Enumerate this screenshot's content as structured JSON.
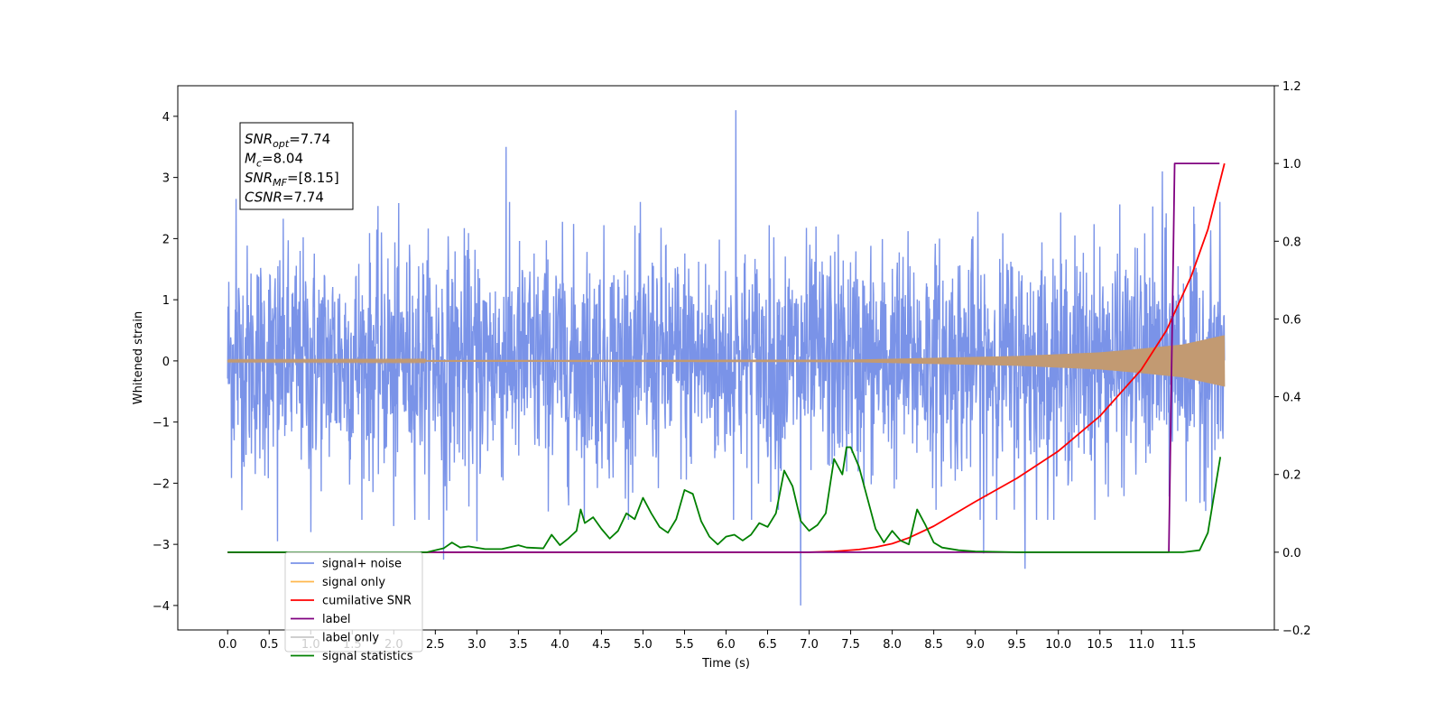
{
  "chart_data": {
    "type": "line",
    "xlabel": "Time (s)",
    "ylabel": "Whitened strain",
    "xlim": [
      -0.6,
      12.6
    ],
    "ylim": [
      -4.4,
      4.5
    ],
    "y2lim": [
      -0.2,
      1.2
    ],
    "xticks": [
      0.0,
      0.5,
      1.0,
      1.5,
      2.0,
      2.5,
      3.0,
      3.5,
      4.0,
      4.5,
      5.0,
      5.5,
      6.0,
      6.5,
      7.0,
      7.5,
      8.0,
      8.5,
      9.0,
      9.5,
      10.0,
      10.5,
      11.0,
      11.5
    ],
    "xtick_labels": [
      "0.0",
      "0.5",
      "1.0",
      "1.5",
      "2.0",
      "2.5",
      "3.0",
      "3.5",
      "4.0",
      "4.5",
      "5.0",
      "5.5",
      "6.0",
      "6.5",
      "7.0",
      "7.5",
      "8.0",
      "8.5",
      "9.0",
      "9.5",
      "10.0",
      "10.5",
      "11.0",
      "11.5"
    ],
    "yticks": [
      -4,
      -3,
      -2,
      -1,
      0,
      1,
      2,
      3,
      4
    ],
    "ytick_labels": [
      "−4",
      "−3",
      "−2",
      "−1",
      "0",
      "1",
      "2",
      "3",
      "4"
    ],
    "y2ticks": [
      -0.2,
      0.0,
      0.2,
      0.4,
      0.6,
      0.8,
      1.0,
      1.2
    ],
    "y2tick_labels": [
      "−0.2",
      "0.0",
      "0.2",
      "0.4",
      "0.6",
      "0.8",
      "1.0",
      "1.2"
    ],
    "legend_location": "bottom-left",
    "info_box": {
      "location": "top-left",
      "lines": [
        {
          "base": "SNR",
          "sub": "opt",
          "rest": "=7.74"
        },
        {
          "base": "M",
          "sub": "c",
          "rest": "=8.04"
        },
        {
          "base": "SNR",
          "sub": "MF",
          "rest": "=[8.15]"
        },
        {
          "base": "CSNR",
          "sub": "",
          "rest": "=7.74"
        }
      ]
    },
    "series": [
      {
        "name": "signal+ noise",
        "axis": "left",
        "color": "#7a93e8",
        "kind": "noise",
        "x_range": [
          0.0,
          12.0
        ],
        "typical_amplitude": 1.5,
        "extremes": [
          [
            0.1,
            2.65
          ],
          [
            0.6,
            -2.95
          ],
          [
            1.0,
            -2.8
          ],
          [
            2.0,
            -2.7
          ],
          [
            2.6,
            -3.25
          ],
          [
            3.0,
            -2.95
          ],
          [
            3.35,
            3.5
          ],
          [
            6.12,
            4.1
          ],
          [
            6.9,
            -4.0
          ],
          [
            9.1,
            -3.15
          ],
          [
            9.6,
            -3.4
          ],
          [
            11.25,
            3.1
          ]
        ]
      },
      {
        "name": "signal only",
        "axis": "left",
        "color": "#c29a72",
        "kind": "chirp",
        "x_range": [
          0.0,
          12.0
        ],
        "envelope": [
          [
            0.0,
            0.01
          ],
          [
            7.5,
            0.02
          ],
          [
            8.5,
            0.05
          ],
          [
            9.5,
            0.08
          ],
          [
            10.5,
            0.14
          ],
          [
            11.0,
            0.2
          ],
          [
            11.5,
            0.27
          ],
          [
            12.0,
            0.42
          ]
        ]
      },
      {
        "name": "cumilative SNR",
        "axis": "right",
        "color": "#ff0000",
        "x": [
          0.0,
          7.0,
          7.3,
          7.6,
          7.8,
          8.0,
          8.2,
          8.5,
          9.0,
          9.5,
          10.0,
          10.5,
          11.0,
          11.3,
          11.6,
          11.8,
          12.0
        ],
        "y": [
          0.0,
          0.0,
          0.002,
          0.007,
          0.013,
          0.022,
          0.037,
          0.067,
          0.13,
          0.19,
          0.26,
          0.35,
          0.47,
          0.57,
          0.71,
          0.83,
          1.0
        ]
      },
      {
        "name": "label",
        "axis": "right",
        "color": "#800080",
        "x": [
          0.0,
          11.33,
          11.4,
          11.94
        ],
        "y": [
          0.0,
          0.0,
          1.0,
          1.0
        ]
      },
      {
        "name": "label only",
        "axis": "right",
        "color": "#c8c8c8",
        "hidden_in_plot": true,
        "x": [],
        "y": []
      },
      {
        "name": "signal statistics",
        "axis": "right",
        "color": "#008000",
        "x": [
          0.0,
          2.4,
          2.6,
          2.7,
          2.8,
          2.9,
          3.1,
          3.3,
          3.5,
          3.6,
          3.8,
          3.9,
          4.0,
          4.1,
          4.2,
          4.25,
          4.3,
          4.4,
          4.5,
          4.6,
          4.7,
          4.8,
          4.9,
          5.0,
          5.1,
          5.2,
          5.3,
          5.4,
          5.5,
          5.6,
          5.7,
          5.8,
          5.9,
          6.0,
          6.1,
          6.2,
          6.3,
          6.4,
          6.5,
          6.6,
          6.7,
          6.8,
          6.9,
          7.0,
          7.1,
          7.2,
          7.3,
          7.4,
          7.45,
          7.5,
          7.6,
          7.7,
          7.8,
          7.9,
          8.0,
          8.1,
          8.2,
          8.3,
          8.4,
          8.5,
          8.6,
          8.8,
          9.0,
          9.5,
          10.0,
          11.5,
          11.7,
          11.8,
          11.9,
          11.95
        ],
        "y": [
          0.0,
          0.0,
          0.01,
          0.025,
          0.012,
          0.015,
          0.008,
          0.008,
          0.018,
          0.012,
          0.01,
          0.045,
          0.018,
          0.035,
          0.055,
          0.11,
          0.075,
          0.09,
          0.06,
          0.035,
          0.055,
          0.1,
          0.085,
          0.14,
          0.1,
          0.065,
          0.05,
          0.085,
          0.16,
          0.15,
          0.08,
          0.04,
          0.02,
          0.04,
          0.045,
          0.03,
          0.045,
          0.075,
          0.065,
          0.1,
          0.21,
          0.17,
          0.08,
          0.055,
          0.07,
          0.1,
          0.24,
          0.2,
          0.27,
          0.27,
          0.22,
          0.14,
          0.06,
          0.025,
          0.055,
          0.03,
          0.02,
          0.11,
          0.07,
          0.025,
          0.012,
          0.005,
          0.002,
          0.0,
          0.0,
          0.0,
          0.005,
          0.05,
          0.18,
          0.245
        ]
      }
    ]
  }
}
